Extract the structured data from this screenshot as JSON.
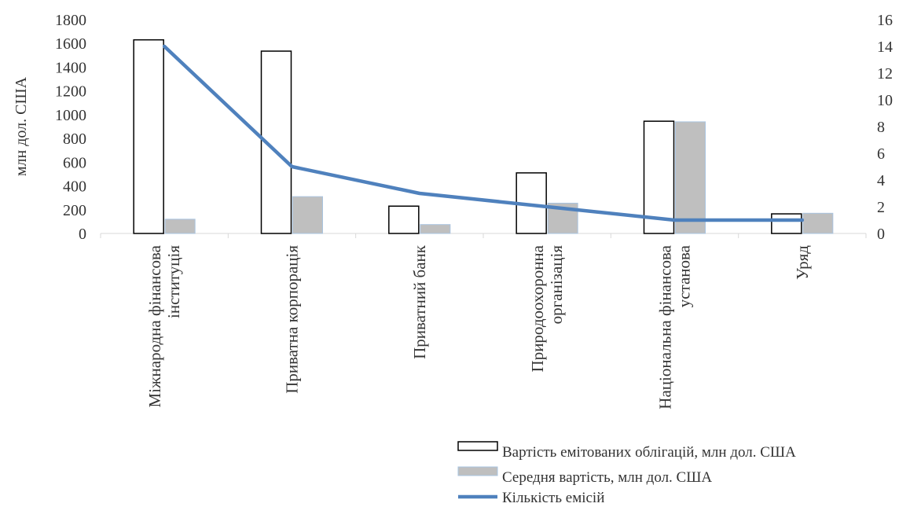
{
  "chart_data": {
    "type": "bar",
    "categories": [
      [
        "Міжнародна фінансова",
        "інституція"
      ],
      [
        "Приватна корпорація"
      ],
      [
        "Приватний банк"
      ],
      [
        "Природоохоронна",
        "організація"
      ],
      [
        "Національна фінансова",
        "установа"
      ],
      [
        "Уряд"
      ]
    ],
    "series": [
      {
        "name": "Вартість емітованих облігацій, млн дол. США",
        "kind": "bar",
        "axis": "left",
        "values": [
          1630,
          1535,
          230,
          510,
          945,
          165
        ]
      },
      {
        "name": "Середня вартість, млн дол. США",
        "kind": "bar",
        "axis": "left",
        "values": [
          120,
          310,
          75,
          255,
          940,
          170
        ]
      },
      {
        "name": "Кількість емісій",
        "kind": "line",
        "axis": "right",
        "values": [
          14,
          5,
          3,
          2,
          1,
          1
        ]
      }
    ],
    "ylabel": "млн дол. США",
    "ylim": [
      0,
      1800
    ],
    "yticks": [
      0,
      200,
      400,
      600,
      800,
      1000,
      1200,
      1400,
      1600,
      1800
    ],
    "y2lim": [
      0,
      16
    ],
    "y2ticks": [
      0,
      2,
      4,
      6,
      8,
      10,
      12,
      14,
      16
    ],
    "grid": false,
    "legend": "bottom-right",
    "colors": {
      "bar1_fill": "#ffffff",
      "bar1_stroke": "#000000",
      "bar2_fill": "#bfbfbf",
      "bar2_stroke": "#aac4e0",
      "line": "#4f81bd",
      "axis": "#d9d9d9"
    }
  }
}
